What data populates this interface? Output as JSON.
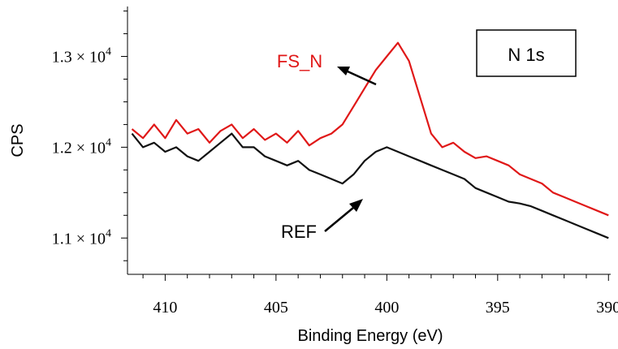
{
  "chart_data": {
    "type": "line",
    "xlabel": "Binding Energy (eV)",
    "ylabel": "CPS",
    "xlim": [
      411.7,
      389.9
    ],
    "ylim": [
      10600,
      13550
    ],
    "x_reversed": true,
    "xticks": [
      410,
      405,
      400,
      395,
      390
    ],
    "yticks": [
      {
        "value": 11000,
        "mantissa": "1.1",
        "times": "×",
        "base": "10",
        "exp": "4"
      },
      {
        "value": 12000,
        "mantissa": "1.2",
        "times": "×",
        "base": "10",
        "exp": "4"
      },
      {
        "value": 13000,
        "mantissa": "1.3",
        "times": "×",
        "base": "10",
        "exp": "4"
      }
    ],
    "grid": false,
    "annotations": [
      {
        "text": "N 1s",
        "boxed": true
      },
      {
        "text": "FS_N",
        "series": "FS_N",
        "arrow": true
      },
      {
        "text": "REF",
        "series": "REF",
        "arrow": true
      }
    ],
    "series": [
      {
        "name": "FS_N",
        "color": "#e01818",
        "x": [
          411.5,
          411.0,
          410.5,
          410.0,
          409.5,
          409.0,
          408.5,
          408.0,
          407.5,
          407.0,
          406.5,
          406.0,
          405.5,
          405.0,
          404.5,
          404.0,
          403.5,
          403.0,
          402.5,
          402.0,
          401.5,
          401.0,
          400.5,
          400.0,
          399.5,
          399.0,
          398.5,
          398.0,
          397.5,
          397.0,
          396.5,
          396.0,
          395.5,
          395.0,
          394.5,
          394.0,
          393.5,
          393.0,
          392.5,
          392.0,
          391.5,
          391.0,
          390.5,
          390.0
        ],
        "y": [
          12200,
          12100,
          12250,
          12100,
          12300,
          12150,
          12200,
          12050,
          12180,
          12250,
          12100,
          12200,
          12080,
          12150,
          12050,
          12180,
          12020,
          12100,
          12150,
          12250,
          12450,
          12650,
          12850,
          13000,
          13150,
          12950,
          12550,
          12150,
          12000,
          12050,
          11950,
          11880,
          11900,
          11850,
          11800,
          11700,
          11650,
          11600,
          11500,
          11450,
          11400,
          11350,
          11300,
          11250
        ]
      },
      {
        "name": "REF",
        "color": "#111111",
        "x": [
          411.5,
          411.0,
          410.5,
          410.0,
          409.5,
          409.0,
          408.5,
          408.0,
          407.5,
          407.0,
          406.5,
          406.0,
          405.5,
          405.0,
          404.5,
          404.0,
          403.5,
          403.0,
          402.5,
          402.0,
          401.5,
          401.0,
          400.5,
          400.0,
          399.5,
          399.0,
          398.5,
          398.0,
          397.5,
          397.0,
          396.5,
          396.0,
          395.5,
          395.0,
          394.5,
          394.0,
          393.5,
          393.0,
          392.5,
          392.0,
          391.5,
          391.0,
          390.5,
          390.0
        ],
        "y": [
          12150,
          12000,
          12050,
          11950,
          12000,
          11900,
          11850,
          11950,
          12050,
          12150,
          12000,
          12000,
          11900,
          11850,
          11800,
          11850,
          11750,
          11700,
          11650,
          11600,
          11700,
          11850,
          11950,
          12000,
          11950,
          11900,
          11850,
          11800,
          11750,
          11700,
          11650,
          11550,
          11500,
          11450,
          11400,
          11380,
          11350,
          11300,
          11250,
          11200,
          11150,
          11100,
          11050,
          11000
        ]
      }
    ]
  }
}
